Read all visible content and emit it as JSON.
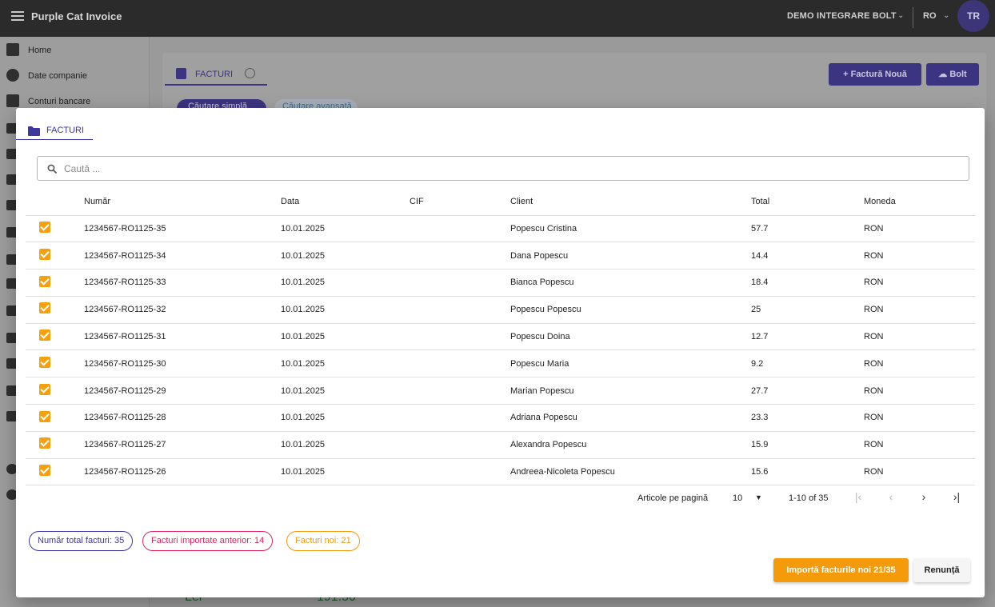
{
  "app": {
    "title": "Purple Cat Invoice",
    "company": "DEMO INTEGRARE BOLT",
    "language": "RO",
    "avatar_initials": "TR"
  },
  "sidebar": {
    "items": [
      {
        "label": "Home",
        "icon": "dashboard-icon"
      },
      {
        "label": "Date companie",
        "icon": "badge-icon"
      },
      {
        "label": "Conturi bancare",
        "icon": "bank-icon"
      }
    ]
  },
  "background": {
    "tab_label": "FACTURI",
    "new_invoice_button": "Factură Nouă",
    "bolt_button": "Bolt",
    "chip_simple": "Căutare simplă",
    "chip_advanced": "Căutare avansată",
    "currency_label": "Lei",
    "amount": "191.50"
  },
  "dialog": {
    "tab_label": "FACTURI",
    "search_placeholder": "Caută ...",
    "columns": [
      "Număr",
      "Data",
      "CIF",
      "Client",
      "Total",
      "Moneda"
    ],
    "rows": [
      {
        "checked": true,
        "numar": "1234567-RO1125-35",
        "data": "10.01.2025",
        "cif": "",
        "client": "Popescu Cristina",
        "total": "57.7",
        "moneda": "RON"
      },
      {
        "checked": true,
        "numar": "1234567-RO1125-34",
        "data": "10.01.2025",
        "cif": "",
        "client": "Dana Popescu",
        "total": "14.4",
        "moneda": "RON"
      },
      {
        "checked": true,
        "numar": "1234567-RO1125-33",
        "data": "10.01.2025",
        "cif": "",
        "client": "Bianca Popescu",
        "total": "18.4",
        "moneda": "RON"
      },
      {
        "checked": true,
        "numar": "1234567-RO1125-32",
        "data": "10.01.2025",
        "cif": "",
        "client": "Popescu Popescu",
        "total": "25",
        "moneda": "RON"
      },
      {
        "checked": true,
        "numar": "1234567-RO1125-31",
        "data": "10.01.2025",
        "cif": "",
        "client": "Popescu Doina",
        "total": "12.7",
        "moneda": "RON"
      },
      {
        "checked": true,
        "numar": "1234567-RO1125-30",
        "data": "10.01.2025",
        "cif": "",
        "client": "Popescu Maria",
        "total": "9.2",
        "moneda": "RON"
      },
      {
        "checked": true,
        "numar": "1234567-RO1125-29",
        "data": "10.01.2025",
        "cif": "",
        "client": "Marian Popescu",
        "total": "27.7",
        "moneda": "RON"
      },
      {
        "checked": true,
        "numar": "1234567-RO1125-28",
        "data": "10.01.2025",
        "cif": "",
        "client": "Adriana Popescu",
        "total": "23.3",
        "moneda": "RON"
      },
      {
        "checked": true,
        "numar": "1234567-RO1125-27",
        "data": "10.01.2025",
        "cif": "",
        "client": "Alexandra Popescu",
        "total": "15.9",
        "moneda": "RON"
      },
      {
        "checked": true,
        "numar": "1234567-RO1125-26",
        "data": "10.01.2025",
        "cif": "",
        "client": "Andreea-Nicoleta Popescu",
        "total": "15.6",
        "moneda": "RON"
      }
    ],
    "paginator": {
      "items_per_page_label": "Articole pe pagină",
      "page_size": "10",
      "range": "1-10 of 35"
    },
    "stats": {
      "total": "Număr total facturi: 35",
      "imported": "Facturi importate anterior: 14",
      "new": "Facturi noi: 21"
    },
    "import_button": "Importă facturile noi 21/35",
    "cancel_button": "Renunță"
  },
  "colors": {
    "primary": "#3f37a0",
    "accent": "#f59a0b",
    "imported": "#e0245e",
    "topbar": "#2b2b2b"
  }
}
